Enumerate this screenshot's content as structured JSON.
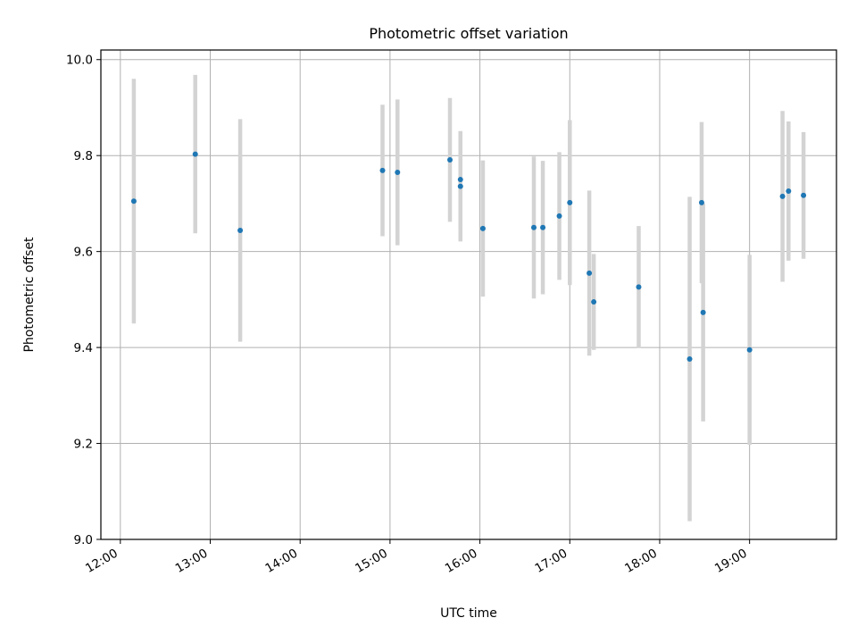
{
  "chart_data": {
    "type": "scatter",
    "title": "Photometric offset variation",
    "xlabel": "UTC time",
    "ylabel": "Photometric offset",
    "xlim": [
      "11:47",
      "19:58"
    ],
    "ylim": [
      9.0,
      10.02
    ],
    "x_ticks": [
      "12:00",
      "13:00",
      "14:00",
      "15:00",
      "16:00",
      "17:00",
      "18:00",
      "19:00"
    ],
    "y_ticks": [
      "9.0",
      "9.2",
      "9.4",
      "9.6",
      "9.8",
      "10.0"
    ],
    "grid": true,
    "marker_color": "#1f77b4",
    "errorbar_color": "#d3d3d3",
    "points": [
      {
        "x": "12:09",
        "y": 9.705,
        "err": 0.255
      },
      {
        "x": "12:50",
        "y": 9.803,
        "err": 0.165
      },
      {
        "x": "13:20",
        "y": 9.644,
        "err": 0.232
      },
      {
        "x": "14:55",
        "y": 9.769,
        "err": 0.137
      },
      {
        "x": "15:05",
        "y": 9.765,
        "err": 0.152
      },
      {
        "x": "15:40",
        "y": 9.791,
        "err": 0.129
      },
      {
        "x": "15:47",
        "y": 9.75,
        "err": 0.1
      },
      {
        "x": "15:47",
        "y": 9.736,
        "err": 0.115
      },
      {
        "x": "16:02",
        "y": 9.648,
        "err": 0.142
      },
      {
        "x": "16:36",
        "y": 9.65,
        "err": 0.148
      },
      {
        "x": "16:42",
        "y": 9.65,
        "err": 0.139
      },
      {
        "x": "16:53",
        "y": 9.674,
        "err": 0.133
      },
      {
        "x": "17:00",
        "y": 9.702,
        "err": 0.172
      },
      {
        "x": "17:13",
        "y": 9.555,
        "err": 0.172
      },
      {
        "x": "17:16",
        "y": 9.495,
        "err": 0.1
      },
      {
        "x": "17:46",
        "y": 9.526,
        "err": 0.127
      },
      {
        "x": "18:20",
        "y": 9.376,
        "err": 0.338
      },
      {
        "x": "18:28",
        "y": 9.702,
        "err": 0.168
      },
      {
        "x": "18:29",
        "y": 9.473,
        "err": 0.227
      },
      {
        "x": "19:00",
        "y": 9.395,
        "err": 0.198
      },
      {
        "x": "19:22",
        "y": 9.715,
        "err": 0.178
      },
      {
        "x": "19:26",
        "y": 9.726,
        "err": 0.145
      },
      {
        "x": "19:36",
        "y": 9.717,
        "err": 0.132
      }
    ]
  }
}
